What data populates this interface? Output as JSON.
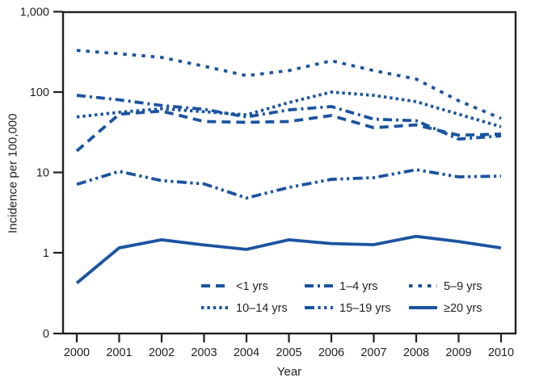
{
  "figure": {
    "ylabel": "Incidence per 100,000",
    "xlabel": "Year",
    "line_color": "#1b54a0",
    "axis_color": "#231f20"
  },
  "chart_data": {
    "type": "line",
    "title": "",
    "xlabel": "Year",
    "ylabel": "Incidence per 100,000",
    "yscale": "log",
    "grid": false,
    "legend_position": "inside-bottom",
    "x": [
      2000,
      2001,
      2002,
      2003,
      2004,
      2005,
      2006,
      2007,
      2008,
      2009,
      2010
    ],
    "yticks": [
      {
        "label": "1,000",
        "value": 1000
      },
      {
        "label": "100",
        "value": 100
      },
      {
        "label": "10",
        "value": 10
      },
      {
        "label": "1",
        "value": 1
      },
      {
        "label": "0",
        "value": 0
      }
    ],
    "series": [
      {
        "name": "<1 yrs",
        "dash": "long-dash",
        "values": [
          18.5,
          53,
          58,
          43,
          42,
          43,
          51,
          36,
          39,
          29,
          30
        ]
      },
      {
        "name": "1–4 yrs",
        "dash": "dash-dot",
        "values": [
          91,
          80,
          68,
          61,
          49,
          60,
          66,
          46,
          44,
          26,
          28.5
        ]
      },
      {
        "name": "5–9 yrs",
        "dash": "sparse-dot",
        "values": [
          330,
          300,
          270,
          210,
          160,
          185,
          245,
          185,
          145,
          78,
          47
        ]
      },
      {
        "name": "10–14 yrs",
        "dash": "dense-dot",
        "values": [
          49,
          56,
          62,
          57,
          52,
          74,
          100,
          91,
          76,
          53,
          37
        ]
      },
      {
        "name": "15–19 yrs",
        "dash": "dash-dot-dot",
        "values": [
          7.1,
          10.3,
          7.9,
          7.2,
          4.8,
          6.5,
          8.2,
          8.6,
          10.8,
          8.8,
          9
        ]
      },
      {
        "name": "≥20 yrs",
        "dash": "solid",
        "values": [
          0.42,
          1.15,
          1.45,
          1.25,
          1.1,
          1.45,
          1.3,
          1.26,
          1.6,
          1.38,
          1.15
        ]
      }
    ]
  }
}
